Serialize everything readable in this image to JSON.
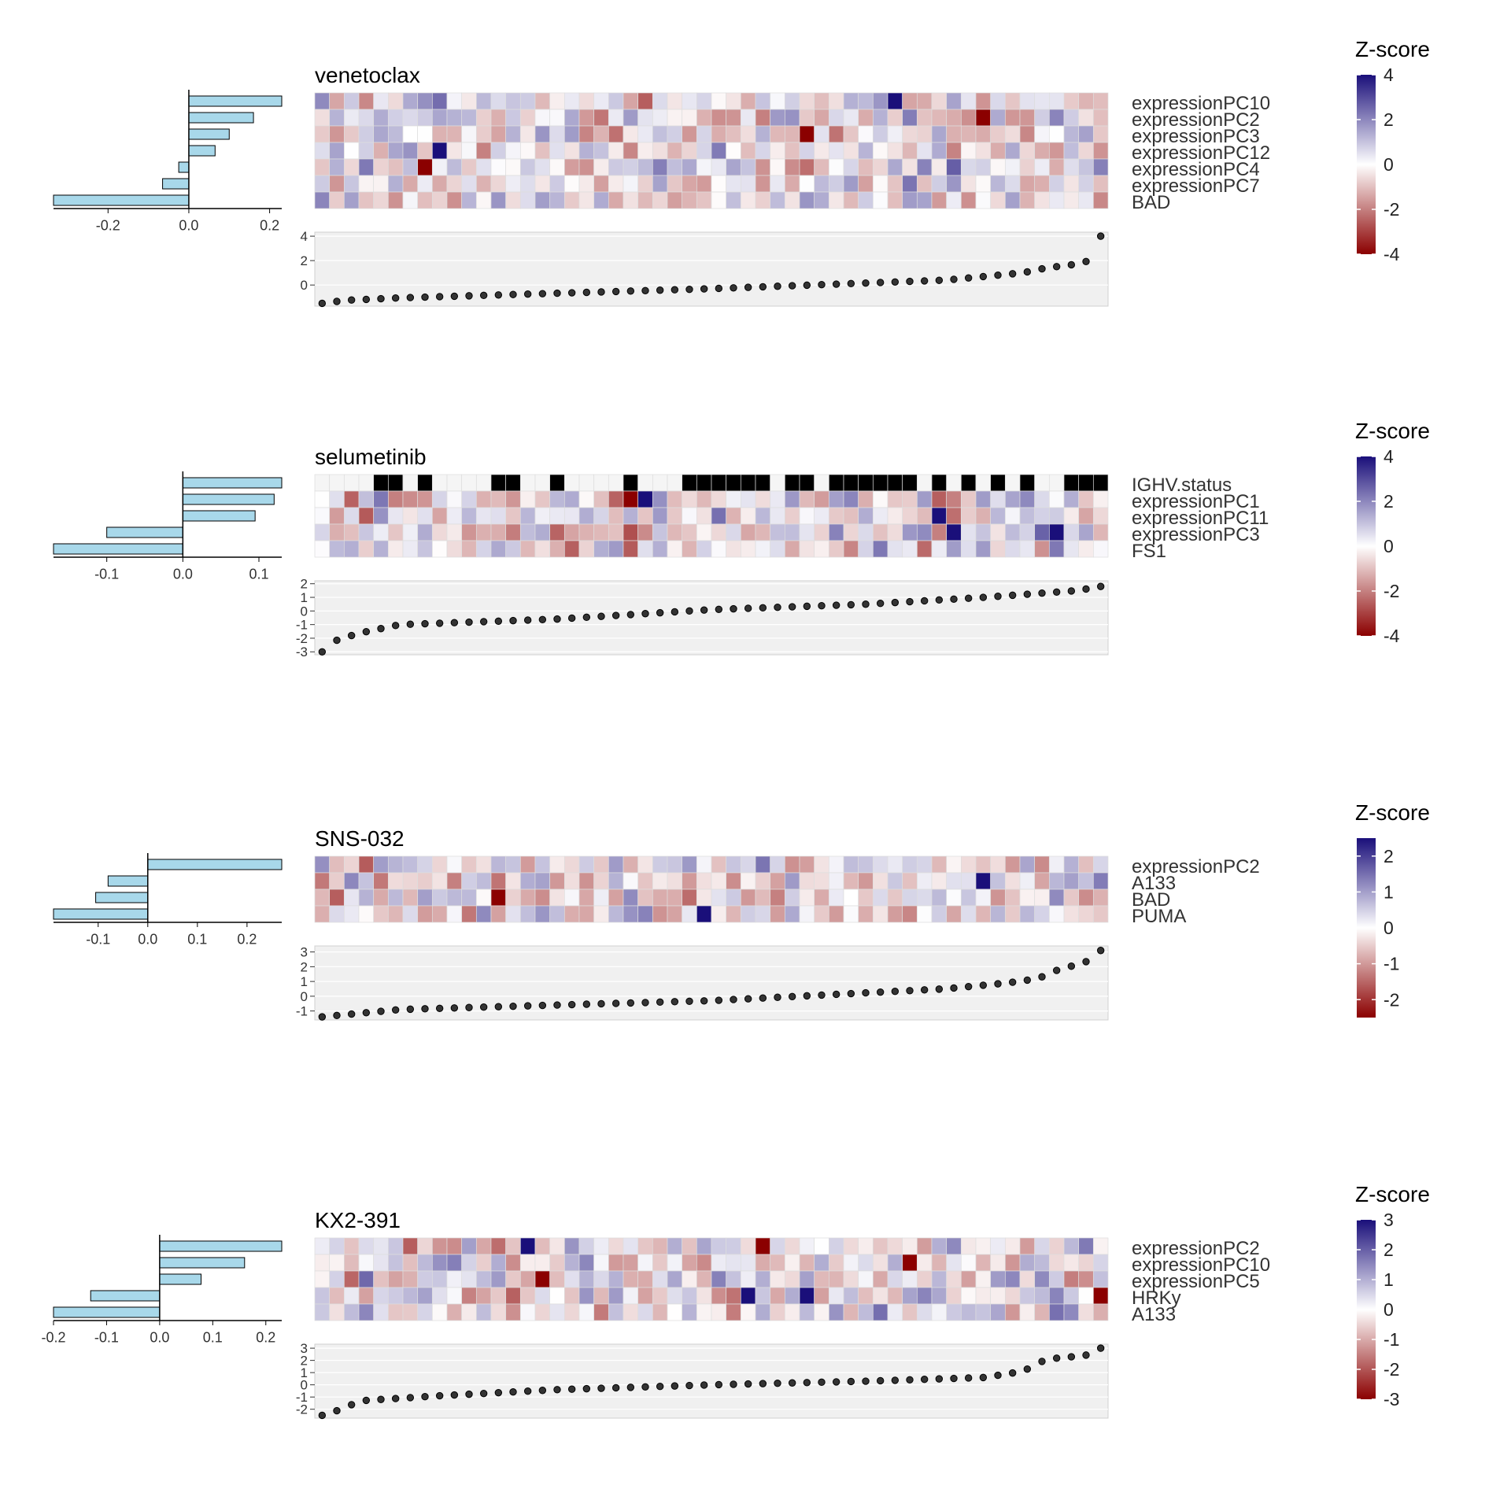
{
  "figure": {
    "legend_title": "Z-score",
    "colors": {
      "low": "#8b0000",
      "mid": "#ffffff",
      "high": "#1a0f7a",
      "bar_fill": "#a8d8ea",
      "bar_stroke": "#000000",
      "point": "#333333",
      "panel_bg": "#f0f0f0",
      "binary_on": "#000000",
      "binary_off": "#f5f5f5"
    }
  },
  "chart_data": [
    {
      "type": "heatmap",
      "title": "venetoclax",
      "n_samples": 54,
      "features": [
        "expressionPC10",
        "expressionPC2",
        "expressionPC3",
        "expressionPC12",
        "expressionPC4",
        "expressionPC7",
        "BAD"
      ],
      "coefficients": [
        0.23,
        0.16,
        0.1,
        0.065,
        -0.025,
        -0.065,
        -0.335
      ],
      "coef_ticks": [
        -0.2,
        0.0,
        0.2
      ],
      "coef_tick_labels": [
        "-0.2",
        "0.0",
        "0.2"
      ],
      "coef_range": [
        -0.335,
        0.23
      ],
      "response_ticks": [
        4,
        2,
        0
      ],
      "response_tick_labels": [
        "4",
        "2",
        "0"
      ],
      "response_range": [
        -1.6,
        4.2
      ],
      "response_anchors": [
        [
          0,
          -1.5
        ],
        [
          0.03,
          -1.25
        ],
        [
          0.1,
          -1.05
        ],
        [
          0.5,
          -0.3
        ],
        [
          0.8,
          0.4
        ],
        [
          0.9,
          1.0
        ],
        [
          0.93,
          1.4
        ],
        [
          0.98,
          1.8
        ],
        [
          1.0,
          4.0
        ]
      ],
      "zscore_ticks": [
        4,
        2,
        0,
        -2,
        -4
      ],
      "zscore_tick_labels": [
        "4",
        "2",
        "0",
        "-2",
        "-4"
      ],
      "zscore_range": [
        -4,
        4
      ],
      "binary_rows": [],
      "seed": 11
    },
    {
      "type": "heatmap",
      "title": "selumetinib",
      "n_samples": 54,
      "features": [
        "IGHV.status",
        "expressionPC1",
        "expressionPC11",
        "expressionPC3",
        "FS1"
      ],
      "coefficients": [
        0.13,
        0.12,
        0.095,
        -0.1,
        -0.17
      ],
      "coef_ticks": [
        -0.1,
        0.0,
        0.1
      ],
      "coef_tick_labels": [
        "-0.1",
        "0.0",
        "0.1"
      ],
      "coef_range": [
        -0.17,
        0.13
      ],
      "response_ticks": [
        2,
        1,
        0,
        -1,
        -2,
        -3
      ],
      "response_tick_labels": [
        "2",
        "1",
        "0",
        "-1",
        "-2",
        "-3"
      ],
      "response_range": [
        -3.1,
        2.1
      ],
      "response_anchors": [
        [
          0,
          -3.0
        ],
        [
          0.02,
          -2.1
        ],
        [
          0.05,
          -1.6
        ],
        [
          0.1,
          -1.0
        ],
        [
          0.3,
          -0.6
        ],
        [
          0.5,
          0.1
        ],
        [
          0.7,
          0.5
        ],
        [
          0.85,
          1.0
        ],
        [
          0.97,
          1.5
        ],
        [
          1.0,
          1.8
        ]
      ],
      "zscore_ticks": [
        4,
        2,
        0,
        -2,
        -4
      ],
      "zscore_tick_labels": [
        "4",
        "2",
        "0",
        "-2",
        "-4"
      ],
      "zscore_range": [
        -4,
        4
      ],
      "binary_rows": [
        0
      ],
      "seed": 23
    },
    {
      "type": "heatmap",
      "title": "SNS-032",
      "n_samples": 54,
      "features": [
        "expressionPC2",
        "A133",
        "BAD",
        "PUMA"
      ],
      "coefficients": [
        0.27,
        -0.08,
        -0.105,
        -0.19
      ],
      "coef_ticks": [
        -0.1,
        0.0,
        0.1,
        0.2
      ],
      "coef_tick_labels": [
        "-0.1",
        "0.0",
        "0.1",
        "0.2"
      ],
      "coef_range": [
        -0.19,
        0.27
      ],
      "response_ticks": [
        3,
        2,
        1,
        0,
        -1
      ],
      "response_tick_labels": [
        "3",
        "2",
        "1",
        "0",
        "-1"
      ],
      "response_range": [
        -1.5,
        3.3
      ],
      "response_anchors": [
        [
          0,
          -1.4
        ],
        [
          0.04,
          -1.2
        ],
        [
          0.1,
          -0.9
        ],
        [
          0.5,
          -0.3
        ],
        [
          0.8,
          0.5
        ],
        [
          0.88,
          0.9
        ],
        [
          0.92,
          1.2
        ],
        [
          0.94,
          1.7
        ],
        [
          0.98,
          2.3
        ],
        [
          1.0,
          3.1
        ]
      ],
      "zscore_ticks": [
        2,
        1,
        0,
        -1,
        -2
      ],
      "zscore_tick_labels": [
        "2",
        "1",
        "0",
        "-1",
        "-2"
      ],
      "zscore_range": [
        -2.5,
        2.5
      ],
      "binary_rows": [],
      "seed": 37
    },
    {
      "type": "heatmap",
      "title": "KX2-391",
      "n_samples": 54,
      "features": [
        "expressionPC2",
        "expressionPC10",
        "expressionPC5",
        "HRKy",
        "A133"
      ],
      "coefficients": [
        0.23,
        0.16,
        0.078,
        -0.13,
        -0.2
      ],
      "coef_ticks": [
        -0.2,
        -0.1,
        0.0,
        0.1,
        0.2
      ],
      "coef_tick_labels": [
        "-0.2",
        "-0.1",
        "0.0",
        "0.1",
        "0.2"
      ],
      "coef_range": [
        -0.2,
        0.23
      ],
      "response_ticks": [
        3,
        2,
        1,
        0,
        -1,
        -2
      ],
      "response_tick_labels": [
        "3",
        "2",
        "1",
        "0",
        "-1",
        "-2"
      ],
      "response_range": [
        -2.6,
        3.2
      ],
      "response_anchors": [
        [
          0,
          -2.5
        ],
        [
          0.02,
          -2.1
        ],
        [
          0.05,
          -1.3
        ],
        [
          0.15,
          -0.9
        ],
        [
          0.3,
          -0.4
        ],
        [
          0.5,
          0.0
        ],
        [
          0.7,
          0.3
        ],
        [
          0.85,
          0.6
        ],
        [
          0.9,
          1.1
        ],
        [
          0.93,
          2.1
        ],
        [
          0.98,
          2.4
        ],
        [
          1.0,
          3.0
        ]
      ],
      "zscore_ticks": [
        3,
        2,
        1,
        0,
        -1,
        -2,
        -3
      ],
      "zscore_tick_labels": [
        "3",
        "2",
        "1",
        "0",
        "-1",
        "-2",
        "-3"
      ],
      "zscore_range": [
        -3,
        3
      ],
      "binary_rows": [],
      "seed": 53
    }
  ]
}
